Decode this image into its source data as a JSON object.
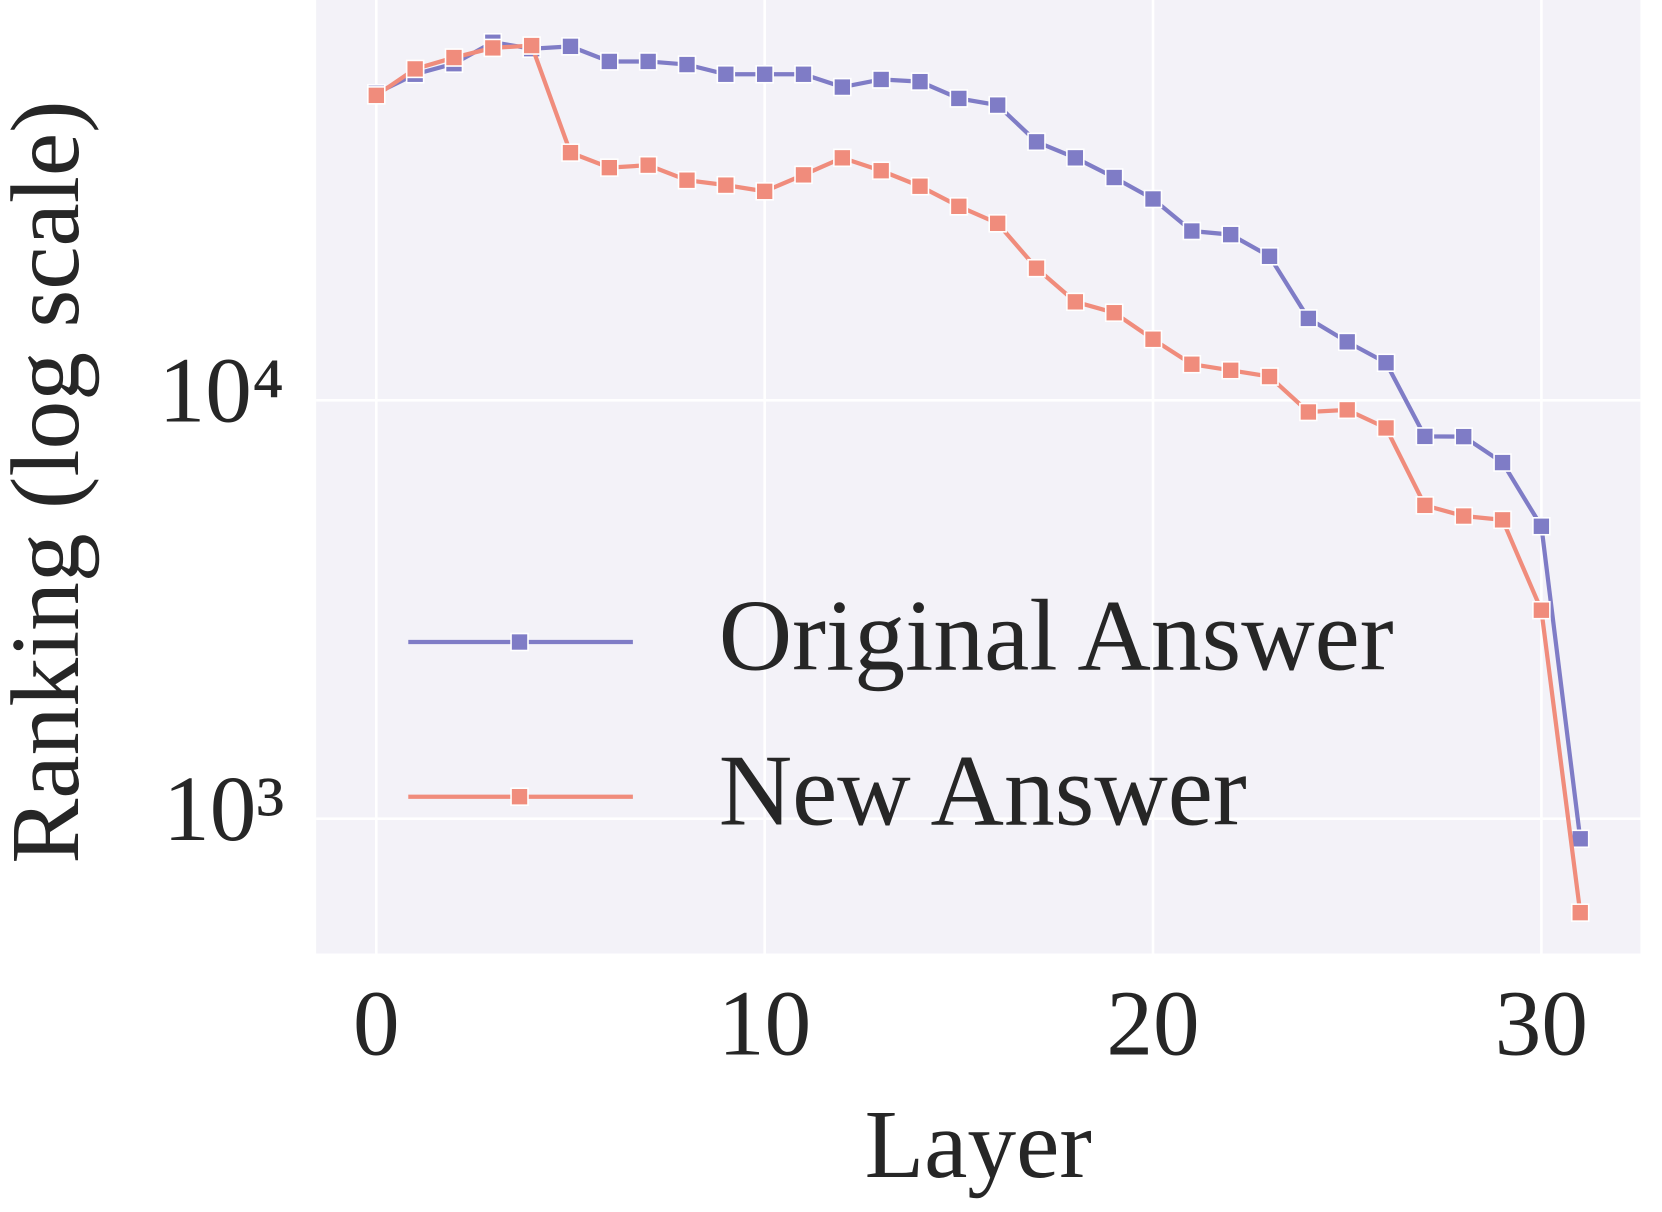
{
  "chart_data": {
    "type": "line",
    "x_label": "Layer",
    "y_label": "Ranking (log scale)",
    "x": [
      0,
      1,
      2,
      3,
      4,
      5,
      6,
      7,
      8,
      9,
      10,
      11,
      12,
      13,
      14,
      15,
      16,
      17,
      18,
      19,
      20,
      21,
      22,
      23,
      24,
      25,
      26,
      27,
      28,
      29,
      30,
      31
    ],
    "series": [
      {
        "name": "Original Answer",
        "color": "#7f7cc6",
        "values": [
          54200,
          60200,
          63800,
          71800,
          69300,
          70200,
          64600,
          64600,
          63500,
          60200,
          60200,
          60200,
          56100,
          58500,
          57800,
          52700,
          50800,
          41500,
          38000,
          34100,
          30300,
          25400,
          24900,
          22100,
          15700,
          13800,
          12300,
          8200,
          8190,
          7100,
          5000,
          895
        ]
      },
      {
        "name": "New Answer",
        "color": "#f08c7c",
        "values": [
          53600,
          62000,
          66000,
          69600,
          70500,
          39100,
          36000,
          36500,
          33600,
          32700,
          31600,
          34600,
          38000,
          35400,
          32500,
          29100,
          26500,
          20700,
          17200,
          16200,
          14000,
          12200,
          11800,
          11400,
          9380,
          9490,
          8590,
          5610,
          5290,
          5180,
          3150,
          596
        ]
      }
    ],
    "xlim": [
      -1.55,
      32.55
    ],
    "xticks": [
      0,
      10,
      20,
      30
    ],
    "ylim": [
      476,
      90600
    ],
    "yticks": [
      {
        "value": 1000,
        "label": "10³"
      },
      {
        "value": 10000,
        "label": "10⁴"
      }
    ],
    "log_y": true,
    "grid": true,
    "legend": "center left",
    "background": "#f3f2f8"
  }
}
